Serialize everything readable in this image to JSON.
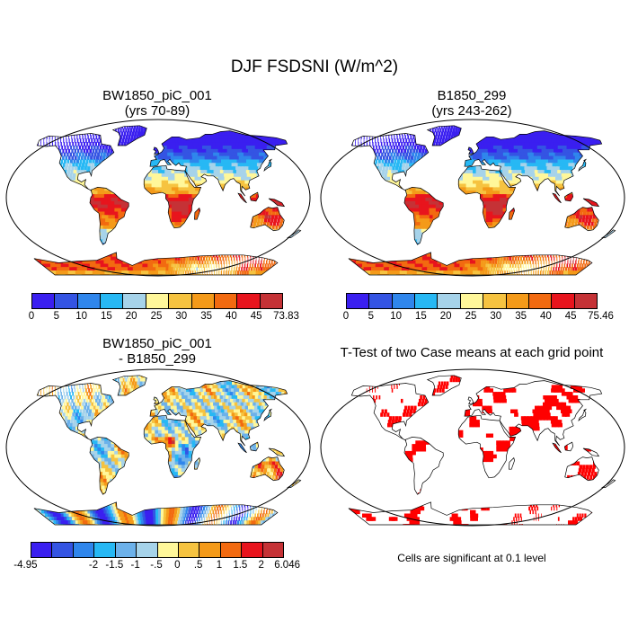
{
  "title": "DJF FSDSNI (W/m^2)",
  "panels": {
    "case1": {
      "line1": "BW1850_piC_001",
      "line2": "(yrs 70-89)"
    },
    "case2": {
      "line1": "B1850_299",
      "line2": "(yrs 243-262)"
    },
    "diff": {
      "line1": "BW1850_piC_001",
      "line2": "- B1850_299"
    },
    "ttest": {
      "line1": "T-Test of two Case means at each grid point"
    }
  },
  "colorbars": {
    "case1": {
      "colors": [
        "#3a1ff0",
        "#3454e3",
        "#2f86ec",
        "#27b8f4",
        "#a6d3ea",
        "#fff79a",
        "#f6c340",
        "#f49a19",
        "#f26a10",
        "#e8141d",
        "#c53236"
      ],
      "labels": [
        "0",
        "5",
        "10",
        "15",
        "20",
        "25",
        "30",
        "35",
        "40",
        "45",
        "73.83"
      ]
    },
    "case2": {
      "colors": [
        "#3a1ff0",
        "#3454e3",
        "#2f86ec",
        "#27b8f4",
        "#a6d3ea",
        "#fff79a",
        "#f6c340",
        "#f49a19",
        "#f26a10",
        "#e8141d",
        "#c53236"
      ],
      "labels": [
        "0",
        "5",
        "10",
        "15",
        "20",
        "25",
        "30",
        "35",
        "40",
        "45",
        "75.46"
      ]
    },
    "diff": {
      "colors": [
        "#3a1ff0",
        "#3454e3",
        "#2f86ec",
        "#27b8f4",
        "#6cb1ea",
        "#a6d3ea",
        "#fff79a",
        "#f6c340",
        "#f49a19",
        "#f26a10",
        "#e8141d",
        "#c53236"
      ],
      "labels": [
        "-4.95",
        "-2",
        "-1.5",
        "-1",
        "-.5",
        "0",
        ".5",
        "1",
        "1.5",
        "2",
        "6.046"
      ]
    }
  },
  "significance_note": "Cells are significant at 0.1 level",
  "colors": {
    "significant": "#ff0000",
    "land_outline": "#000000",
    "ocean": "#ffffff"
  }
}
